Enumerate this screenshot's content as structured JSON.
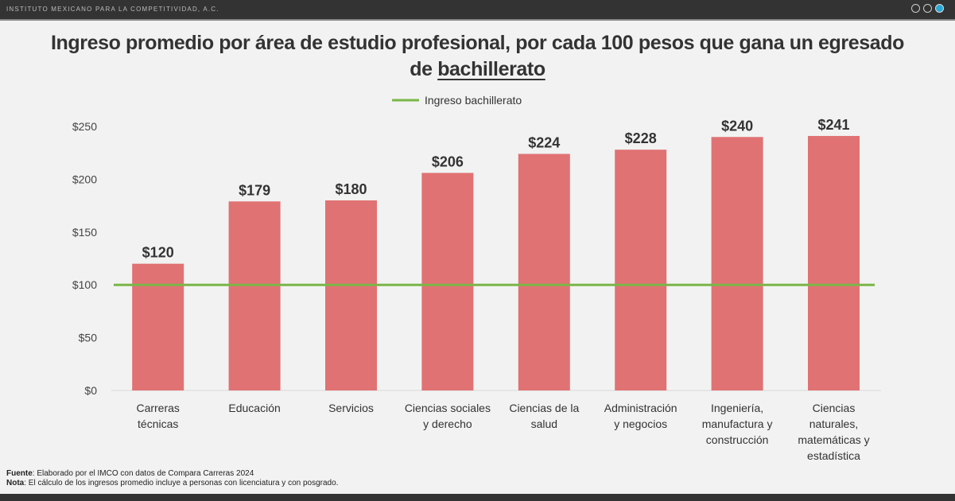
{
  "header": {
    "org": "INSTITUTO MEXICANO PARA LA COMPETITIVIDAD, A.C."
  },
  "title": {
    "line1": "Ingreso promedio por área de estudio profesional, por cada 100 pesos que gana un egresado",
    "line2_prefix": "de ",
    "line2_emphasis": "bachillerato"
  },
  "footer": {
    "source_label": "Fuente",
    "source_text": ": Elaborado por el IMCO con datos de Compara Carreras 2024",
    "note_label": "Nota",
    "note_text": ": El cálculo de los ingresos promedio incluye a personas con licenciatura y con posgrado."
  },
  "chart_data": {
    "type": "bar",
    "categories": [
      [
        "Carreras",
        "técnicas"
      ],
      [
        "Educación"
      ],
      [
        "Servicios"
      ],
      [
        "Ciencias sociales",
        "y derecho"
      ],
      [
        "Ciencias de la",
        "salud"
      ],
      [
        "Administración",
        "y negocios"
      ],
      [
        "Ingeniería,",
        "manufactura y",
        "construcción"
      ],
      [
        "Ciencias",
        "naturales,",
        "matemáticas y",
        "estadística"
      ]
    ],
    "values": [
      120,
      179,
      180,
      206,
      224,
      228,
      240,
      241
    ],
    "data_labels": [
      "$120",
      "$179",
      "$180",
      "$206",
      "$224",
      "$228",
      "$240",
      "$241"
    ],
    "ylim": [
      0,
      250
    ],
    "yticks": [
      0,
      50,
      100,
      150,
      200,
      250
    ],
    "ytick_labels": [
      "$0",
      "$50",
      "$100",
      "$150",
      "$200",
      "$250"
    ],
    "reference_line": {
      "name": "Ingreso bachillerato",
      "value": 100,
      "color": "#7ab648"
    },
    "bar_color": "#e07273",
    "legend_placement": "top-center",
    "grid": false
  }
}
